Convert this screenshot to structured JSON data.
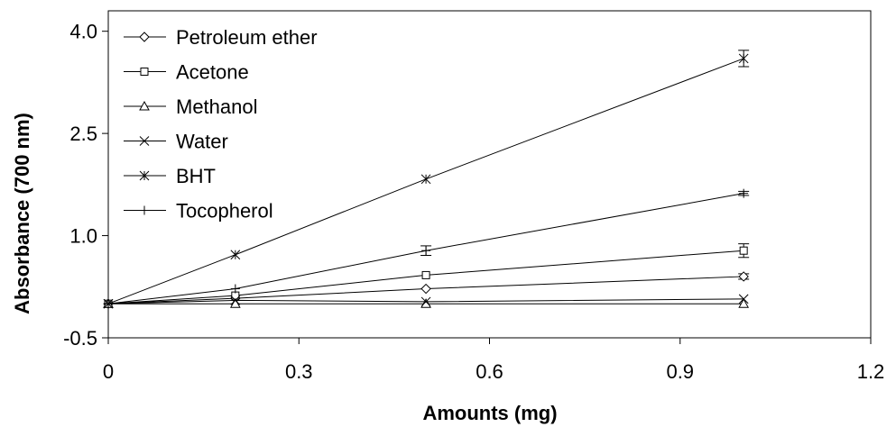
{
  "chart_data": {
    "type": "line",
    "title": "",
    "xlabel": "Amounts (mg)",
    "ylabel": "Absorbance (700 nm)",
    "xlim": [
      0,
      1.2
    ],
    "ylim": [
      -0.5,
      4.3
    ],
    "x_ticks": [
      0,
      0.3,
      0.6,
      0.9,
      1.2
    ],
    "x_tick_labels": [
      "0",
      "0.3",
      "0.6",
      "0.9",
      "1.2"
    ],
    "y_ticks": [
      -0.5,
      1.0,
      2.5,
      4.0
    ],
    "y_tick_labels": [
      "-0.5",
      "1.0",
      "2.5",
      "4.0"
    ],
    "grid": false,
    "legend_position": "top-left",
    "x": [
      0,
      0.2,
      0.5,
      1.0
    ],
    "series": [
      {
        "name": "Petroleum ether",
        "marker": "diamond",
        "values": [
          0.0,
          0.08,
          0.22,
          0.4
        ],
        "error": [
          0,
          0,
          0,
          0.04
        ]
      },
      {
        "name": "Acetone",
        "marker": "square",
        "values": [
          0.0,
          0.12,
          0.42,
          0.78
        ],
        "error": [
          0,
          0,
          0,
          0.1
        ]
      },
      {
        "name": "Methanol",
        "marker": "triangle",
        "values": [
          0.0,
          0.0,
          0.0,
          0.0
        ],
        "error": [
          0,
          0,
          0,
          0
        ]
      },
      {
        "name": "Water",
        "marker": "x",
        "values": [
          0.0,
          0.05,
          0.03,
          0.07
        ],
        "error": [
          0,
          0,
          0,
          0
        ]
      },
      {
        "name": "BHT",
        "marker": "asterisk",
        "values": [
          0.0,
          0.72,
          1.83,
          3.6
        ],
        "error": [
          0,
          0,
          0,
          0.12
        ]
      },
      {
        "name": "Tocopherol",
        "marker": "plus",
        "values": [
          0.0,
          0.22,
          0.78,
          1.62
        ],
        "error": [
          0,
          0,
          0.07,
          0.03
        ]
      }
    ]
  }
}
